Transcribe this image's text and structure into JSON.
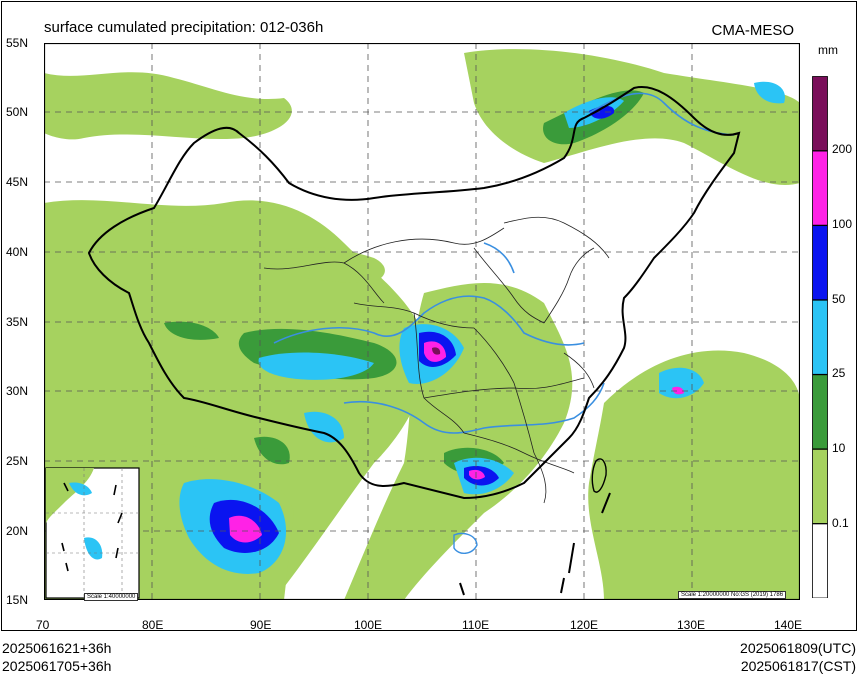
{
  "title": "surface cumulated precipitation: 012-036h",
  "model": "CMA-MESO",
  "units": "mm",
  "axes": {
    "lat_labels": [
      "55N",
      "50N",
      "45N",
      "40N",
      "35N",
      "30N",
      "25N",
      "20N",
      "15N"
    ],
    "lon_labels": [
      "70",
      "80E",
      "90E",
      "100E",
      "110E",
      "120E",
      "130E",
      "140E"
    ]
  },
  "legend": {
    "thresholds": [
      "0.1",
      "10",
      "25",
      "50",
      "100",
      "200"
    ],
    "colors": [
      "#ffffff",
      "#a6d25f",
      "#3a9b3a",
      "#2bc4f5",
      "#0a14f0",
      "#ff22e6",
      "#7a0f5a"
    ]
  },
  "colors": {
    "green_light": "#a6d25f",
    "green_dark": "#3a9b3a",
    "cyan": "#2bc4f5",
    "blue": "#0a14f0",
    "magenta": "#ff22e6",
    "purple": "#7a0f5a",
    "river": "#3a8fe0"
  },
  "scale_main": "Scale 1:20000000 No:GS (2019) 1786",
  "scale_inset": "Scale 1:40000000",
  "footer": {
    "left_top": "2025061621+36h",
    "left_bottom": "2025061705+36h",
    "right_top": "2025061809(UTC)",
    "right_bottom": "2025061817(CST)"
  }
}
